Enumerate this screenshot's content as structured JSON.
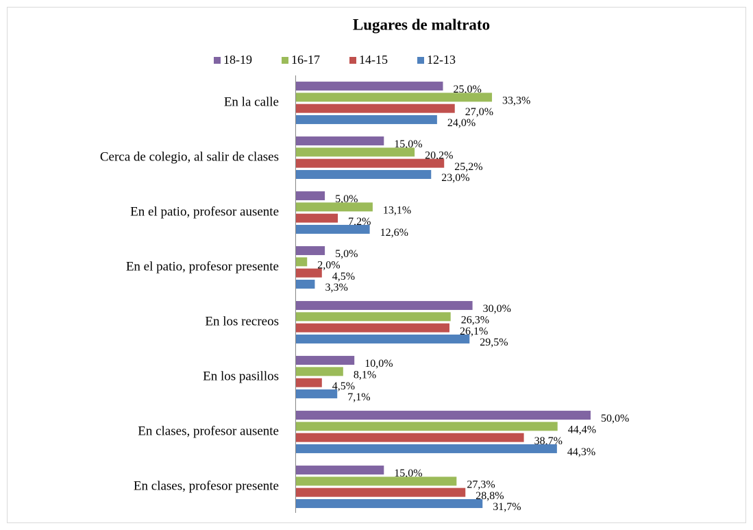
{
  "chart_data": {
    "type": "bar",
    "orientation": "horizontal",
    "title": "Lugares de maltrato",
    "categories": [
      "En la calle",
      "Cerca de colegio, al salir de clases",
      "En el patio, profesor ausente",
      "En el patio, profesor presente",
      "En los recreos",
      "En los pasillos",
      "En clases, profesor ausente",
      "En clases, profesor presente"
    ],
    "series": [
      {
        "name": "18-19",
        "color": "#8064a2",
        "values": [
          25.0,
          15.0,
          5.0,
          5.0,
          30.0,
          10.0,
          50.0,
          15.0
        ],
        "value_labels": [
          "25,0%",
          "15,0%",
          "5,0%",
          "5,0%",
          "30,0%",
          "10,0%",
          "50,0%",
          "15,0%"
        ]
      },
      {
        "name": "16-17",
        "color": "#9bbb59",
        "values": [
          33.3,
          20.2,
          13.1,
          2.0,
          26.3,
          8.1,
          44.4,
          27.3
        ],
        "value_labels": [
          "33,3%",
          "20,2%",
          "13,1%",
          "2,0%",
          "26,3%",
          "8,1%",
          "44,4%",
          "27,3%"
        ]
      },
      {
        "name": "14-15",
        "color": "#c0504d",
        "values": [
          27.0,
          25.2,
          7.2,
          4.5,
          26.1,
          4.5,
          38.7,
          28.8
        ],
        "value_labels": [
          "27,0%",
          "25,2%",
          "7,2%",
          "4,5%",
          "26,1%",
          "4,5%",
          "38,7%",
          "28,8%"
        ]
      },
      {
        "name": "12-13",
        "color": "#4f81bd",
        "values": [
          24.0,
          23.0,
          12.6,
          3.3,
          29.5,
          7.1,
          44.3,
          31.7
        ],
        "value_labels": [
          "24,0%",
          "23,0%",
          "12,6%",
          "3,3%",
          "29,5%",
          "7,1%",
          "44,3%",
          "31,7%"
        ]
      }
    ]
  }
}
